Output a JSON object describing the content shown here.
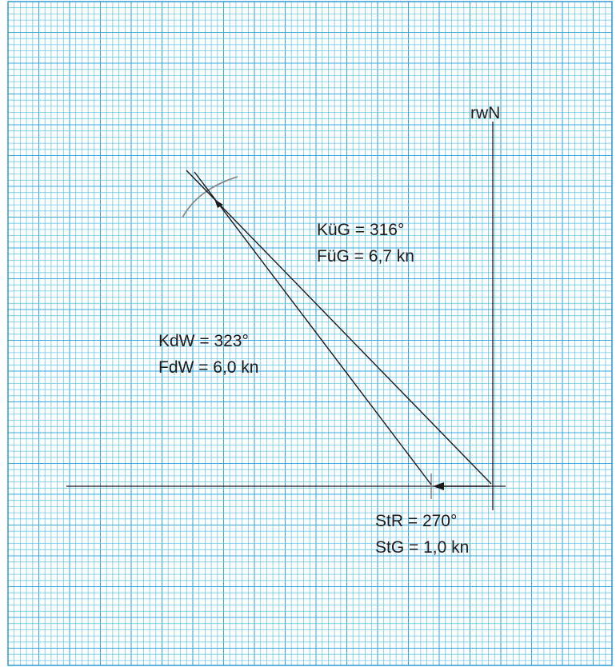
{
  "diagram": {
    "north_label": "rwN",
    "ground_track": {
      "course_label": "KüG = 316°",
      "speed_label": "FüG = 6,7 kn"
    },
    "water_track": {
      "course_label": "KdW = 323°",
      "speed_label": "FdW = 6,0 kn"
    },
    "current": {
      "direction_label": "StR = 270°",
      "speed_label": "StG = 1,0 kn"
    }
  },
  "colors": {
    "grid_minor": "#6cc6ec",
    "grid_major": "#3aa8dc",
    "border": "#2e9bd6",
    "lines": "#1a1a1a",
    "arc": "#888888"
  }
}
